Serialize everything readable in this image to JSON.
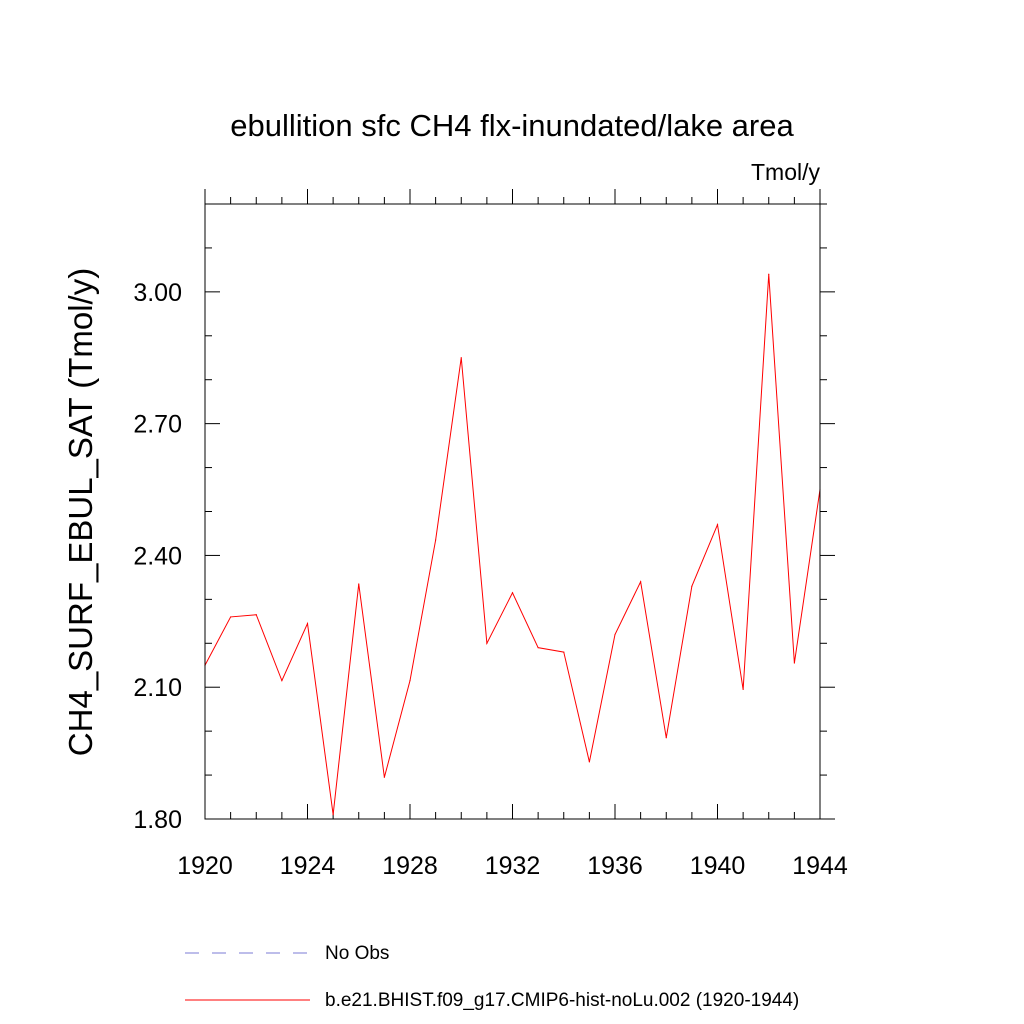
{
  "chart_data": {
    "type": "line",
    "title": "ebullition sfc CH4 flx-inundated/lake area",
    "units_label": "Tmol/y",
    "ylabel": "CH4_SURF_EBUL_SAT  (Tmol/y)",
    "xlabel": "",
    "xlim": [
      1920,
      1944
    ],
    "ylim": [
      1.8,
      3.2
    ],
    "x_ticks": [
      1920,
      1924,
      1928,
      1932,
      1936,
      1940,
      1944
    ],
    "x_tick_labels": [
      "1920",
      "1924",
      "1928",
      "1932",
      "1936",
      "1940",
      "1944"
    ],
    "y_ticks": [
      1.8,
      2.1,
      2.4,
      2.7,
      3.0
    ],
    "y_tick_labels": [
      "1.80",
      "2.10",
      "2.40",
      "2.70",
      "3.00"
    ],
    "grid": false,
    "series": [
      {
        "name": "b.e21.BHIST.f09_g17.CMIP6-hist-noLu.002 (1920-1944)",
        "color": "#ff0000",
        "x": [
          1920,
          1921,
          1922,
          1923,
          1924,
          1925,
          1926,
          1927,
          1928,
          1929,
          1930,
          1931,
          1932,
          1933,
          1934,
          1935,
          1936,
          1937,
          1938,
          1939,
          1940,
          1941,
          1942,
          1943,
          1944
        ],
        "y": [
          2.15,
          2.26,
          2.265,
          2.115,
          2.245,
          1.81,
          2.335,
          1.895,
          2.115,
          2.435,
          2.85,
          2.2,
          2.315,
          2.19,
          2.18,
          1.93,
          2.22,
          2.34,
          1.985,
          2.33,
          2.47,
          2.095,
          3.04,
          2.155,
          2.55
        ]
      }
    ],
    "legend": [
      {
        "label": "No Obs",
        "color": "#7b7bd6",
        "style": "dashed"
      },
      {
        "label": "b.e21.BHIST.f09_g17.CMIP6-hist-noLu.002 (1920-1944)",
        "color": "#ff0000",
        "style": "solid"
      }
    ],
    "legend_position": "bottom"
  }
}
